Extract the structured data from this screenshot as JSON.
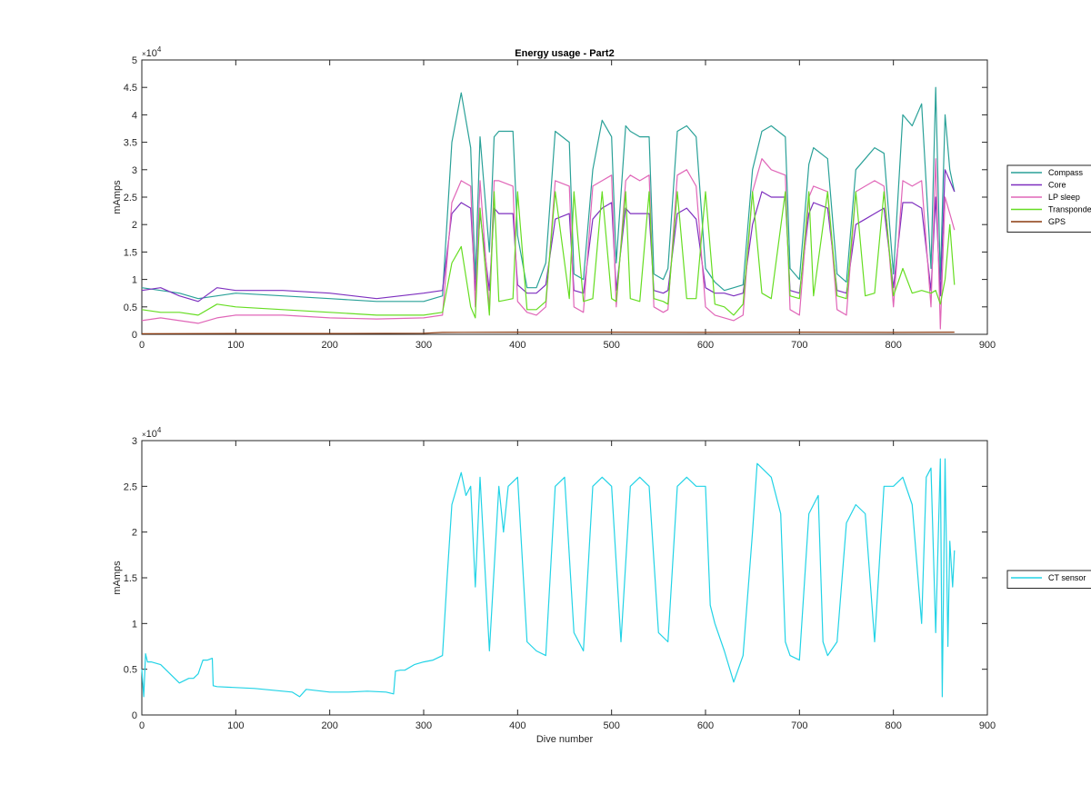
{
  "chart_data": [
    {
      "type": "line",
      "title": "Energy usage - Part2",
      "xlabel": "",
      "ylabel": "mAmps",
      "y_exponent": "10",
      "y_exponent_power": "4",
      "xlim": [
        0,
        900
      ],
      "ylim": [
        0,
        50000
      ],
      "xticks": [
        "0",
        "100",
        "200",
        "300",
        "400",
        "500",
        "600",
        "700",
        "800",
        "900"
      ],
      "yticks": [
        "0",
        "0.5",
        "1",
        "1.5",
        "2",
        "2.5",
        "3",
        "3.5",
        "4",
        "4.5",
        "5"
      ],
      "legend_position": "outside-right",
      "series": [
        {
          "name": "Compass",
          "color": "#2aa198",
          "x": [
            0,
            20,
            40,
            60,
            80,
            100,
            150,
            200,
            250,
            300,
            320,
            330,
            340,
            350,
            355,
            360,
            370,
            375,
            380,
            395,
            400,
            410,
            420,
            430,
            440,
            455,
            460,
            470,
            480,
            490,
            500,
            505,
            515,
            520,
            530,
            540,
            545,
            555,
            560,
            570,
            580,
            590,
            600,
            610,
            620,
            630,
            640,
            650,
            660,
            670,
            685,
            690,
            700,
            710,
            715,
            730,
            740,
            750,
            760,
            770,
            780,
            790,
            800,
            810,
            820,
            830,
            840,
            845,
            850,
            855,
            860,
            865
          ],
          "y": [
            8500,
            8000,
            7500,
            6500,
            7000,
            7500,
            7000,
            6500,
            6000,
            6000,
            7000,
            35000,
            44000,
            34000,
            10000,
            36000,
            15000,
            36000,
            37000,
            37000,
            18000,
            8500,
            8500,
            13000,
            37000,
            35000,
            11000,
            10000,
            30000,
            39000,
            36000,
            13000,
            38000,
            37000,
            36000,
            36000,
            11000,
            10000,
            12000,
            37000,
            38000,
            36000,
            12000,
            9500,
            8000,
            8500,
            9000,
            30000,
            37000,
            38000,
            36000,
            12000,
            10000,
            31000,
            34000,
            32000,
            11000,
            9500,
            30000,
            32000,
            34000,
            33000,
            11000,
            40000,
            38000,
            42000,
            12000,
            45000,
            10000,
            40000,
            30000,
            26000
          ]
        },
        {
          "name": "Core",
          "color": "#7e2fbf",
          "x": [
            0,
            20,
            40,
            60,
            80,
            100,
            150,
            200,
            250,
            300,
            320,
            330,
            340,
            350,
            355,
            360,
            370,
            375,
            380,
            395,
            400,
            410,
            420,
            430,
            440,
            455,
            460,
            470,
            480,
            490,
            500,
            505,
            515,
            520,
            530,
            540,
            545,
            555,
            560,
            570,
            580,
            590,
            600,
            610,
            620,
            630,
            640,
            650,
            660,
            670,
            685,
            690,
            700,
            710,
            715,
            730,
            740,
            750,
            760,
            770,
            780,
            790,
            800,
            810,
            820,
            830,
            840,
            845,
            850,
            855,
            860,
            865
          ],
          "y": [
            8000,
            8500,
            7000,
            6000,
            8500,
            8000,
            8000,
            7500,
            6500,
            7500,
            8000,
            22000,
            24000,
            23000,
            8000,
            22000,
            8000,
            23000,
            22000,
            22000,
            9000,
            7500,
            7500,
            9000,
            21000,
            22000,
            8000,
            7500,
            21000,
            23000,
            24000,
            8000,
            23000,
            22000,
            22000,
            22000,
            8000,
            7500,
            8000,
            22000,
            23000,
            21000,
            8500,
            7500,
            7500,
            7000,
            7500,
            20000,
            26000,
            25000,
            25000,
            8000,
            7500,
            22000,
            24000,
            23000,
            8000,
            7500,
            20000,
            21000,
            22000,
            23000,
            8500,
            24000,
            24000,
            23000,
            8000,
            25000,
            7000,
            30000,
            28000,
            26000
          ]
        },
        {
          "name": "LP sleep",
          "color": "#e066b8",
          "x": [
            0,
            20,
            40,
            60,
            80,
            100,
            150,
            200,
            250,
            300,
            320,
            330,
            340,
            350,
            355,
            360,
            370,
            375,
            380,
            395,
            400,
            410,
            420,
            430,
            440,
            455,
            460,
            470,
            480,
            490,
            500,
            505,
            515,
            520,
            530,
            540,
            545,
            555,
            560,
            570,
            580,
            590,
            600,
            610,
            620,
            630,
            640,
            650,
            660,
            670,
            685,
            690,
            700,
            710,
            715,
            730,
            740,
            750,
            760,
            770,
            780,
            790,
            800,
            810,
            820,
            830,
            840,
            845,
            850,
            855,
            860,
            865
          ],
          "y": [
            2500,
            3000,
            2500,
            2000,
            3000,
            3500,
            3500,
            3000,
            2800,
            3000,
            3500,
            24000,
            28000,
            27000,
            5000,
            28000,
            4500,
            28000,
            28000,
            27000,
            6000,
            4000,
            3500,
            5000,
            28000,
            27000,
            5000,
            4000,
            27000,
            28000,
            29000,
            5000,
            28000,
            29000,
            28000,
            29000,
            5000,
            4000,
            4500,
            29000,
            30000,
            27000,
            5000,
            3500,
            3000,
            2500,
            3500,
            26000,
            32000,
            30000,
            29000,
            4500,
            3500,
            25000,
            27000,
            26000,
            4500,
            3500,
            26000,
            27000,
            28000,
            27000,
            5000,
            28000,
            27000,
            28000,
            5000,
            32000,
            1000,
            25000,
            22000,
            19000
          ]
        },
        {
          "name": "Transponder",
          "color": "#66dd22",
          "x": [
            0,
            20,
            40,
            60,
            80,
            100,
            150,
            200,
            250,
            300,
            320,
            330,
            340,
            350,
            355,
            360,
            370,
            375,
            380,
            395,
            400,
            410,
            420,
            430,
            440,
            455,
            460,
            470,
            480,
            490,
            500,
            505,
            515,
            520,
            530,
            540,
            545,
            555,
            560,
            570,
            580,
            590,
            600,
            610,
            620,
            630,
            640,
            650,
            660,
            670,
            685,
            690,
            700,
            710,
            715,
            730,
            740,
            750,
            760,
            770,
            780,
            790,
            800,
            810,
            820,
            830,
            840,
            845,
            850,
            855,
            860,
            865
          ],
          "y": [
            4500,
            4000,
            4000,
            3500,
            5500,
            5000,
            4500,
            4000,
            3500,
            3500,
            4000,
            13000,
            16000,
            5000,
            3000,
            23000,
            3500,
            26000,
            6000,
            6500,
            26000,
            4500,
            4500,
            6000,
            26000,
            6500,
            26000,
            6000,
            6500,
            26000,
            6500,
            6000,
            26000,
            6500,
            6000,
            26000,
            6500,
            6000,
            5500,
            26000,
            6500,
            6500,
            26000,
            5500,
            5000,
            3500,
            5500,
            26000,
            7500,
            6500,
            26000,
            7000,
            6500,
            26000,
            7000,
            26000,
            7000,
            6500,
            26000,
            7000,
            7500,
            26000,
            7000,
            12000,
            7500,
            8000,
            7500,
            8000,
            5500,
            10000,
            20000,
            9000
          ]
        },
        {
          "name": "GPS",
          "color": "#8b3a0f",
          "x": [
            0,
            100,
            200,
            300,
            320,
            400,
            500,
            600,
            700,
            800,
            865
          ],
          "y": [
            100,
            150,
            150,
            200,
            350,
            400,
            400,
            350,
            400,
            350,
            400
          ]
        }
      ]
    },
    {
      "type": "line",
      "title": "",
      "xlabel": "Dive number",
      "ylabel": "mAmps",
      "y_exponent": "10",
      "y_exponent_power": "4",
      "xlim": [
        0,
        900
      ],
      "ylim": [
        0,
        30000
      ],
      "xticks": [
        "0",
        "100",
        "200",
        "300",
        "400",
        "500",
        "600",
        "700",
        "800",
        "900"
      ],
      "yticks": [
        "0",
        "0.5",
        "1",
        "1.5",
        "2",
        "2.5",
        "3"
      ],
      "legend_position": "outside-right",
      "series": [
        {
          "name": "CT sensor",
          "color": "#22d3e6",
          "x": [
            0,
            2,
            4,
            6,
            10,
            20,
            30,
            40,
            50,
            55,
            60,
            65,
            70,
            75,
            76,
            80,
            100,
            120,
            140,
            160,
            168,
            175,
            200,
            220,
            240,
            260,
            268,
            270,
            275,
            280,
            290,
            300,
            310,
            320,
            325,
            330,
            340,
            345,
            350,
            355,
            360,
            370,
            380,
            385,
            390,
            400,
            410,
            420,
            430,
            440,
            450,
            460,
            470,
            480,
            490,
            500,
            510,
            520,
            530,
            540,
            550,
            560,
            570,
            580,
            590,
            600,
            605,
            610,
            620,
            630,
            640,
            650,
            655,
            660,
            670,
            680,
            685,
            690,
            700,
            710,
            720,
            725,
            730,
            740,
            750,
            760,
            770,
            780,
            790,
            800,
            810,
            820,
            830,
            835,
            840,
            845,
            850,
            852,
            855,
            858,
            860,
            863,
            865
          ],
          "y": [
            5000,
            2000,
            6700,
            5800,
            5800,
            5500,
            4500,
            3500,
            4000,
            4000,
            4500,
            6000,
            6000,
            6200,
            3200,
            3100,
            3000,
            2900,
            2700,
            2500,
            2000,
            2800,
            2500,
            2500,
            2600,
            2500,
            2300,
            4800,
            4900,
            4900,
            5500,
            5800,
            6000,
            6500,
            15000,
            23000,
            26500,
            24000,
            25000,
            14000,
            26000,
            7000,
            25000,
            20000,
            25000,
            26000,
            8000,
            7000,
            6500,
            25000,
            26000,
            9000,
            7000,
            25000,
            26000,
            25000,
            8000,
            25000,
            26000,
            25000,
            9000,
            8000,
            25000,
            26000,
            25000,
            25000,
            12000,
            10000,
            7000,
            3600,
            6500,
            20000,
            27500,
            27000,
            26000,
            22000,
            8000,
            6500,
            6000,
            22000,
            24000,
            8000,
            6500,
            8000,
            21000,
            23000,
            22000,
            8000,
            25000,
            25000,
            26000,
            23000,
            10000,
            26000,
            27000,
            9000,
            28000,
            2000,
            28000,
            7500,
            19000,
            14000,
            18000
          ]
        }
      ]
    }
  ]
}
